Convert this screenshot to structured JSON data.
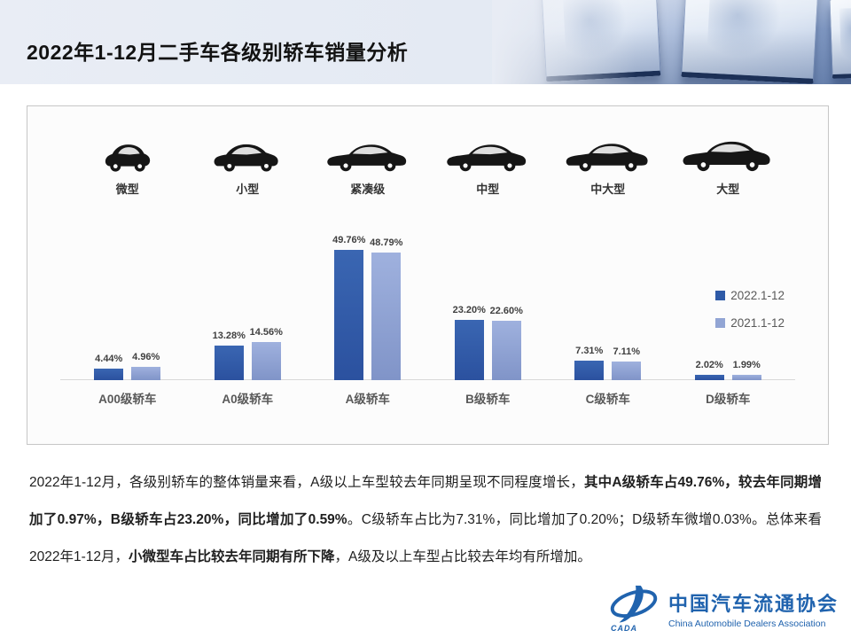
{
  "header": {
    "title": "2022年1-12月二手车各级别轿车销量分析"
  },
  "chart": {
    "car_types": [
      {
        "label": "微型",
        "icon": "micro-car-icon"
      },
      {
        "label": "小型",
        "icon": "small-car-icon"
      },
      {
        "label": "紧凑级",
        "icon": "compact-car-icon"
      },
      {
        "label": "中型",
        "icon": "mid-size-car-icon"
      },
      {
        "label": "中大型",
        "icon": "mid-large-car-icon"
      },
      {
        "label": "大型",
        "icon": "large-car-icon"
      }
    ]
  },
  "chart_data": {
    "type": "bar",
    "title": "",
    "xlabel": "",
    "ylabel": "",
    "categories": [
      "A00级轿车",
      "A0级轿车",
      "A级轿车",
      "B级轿车",
      "C级轿车",
      "D级轿车"
    ],
    "series": [
      {
        "name": "2022.1-12",
        "color": "#2E5AA7",
        "values": [
          4.44,
          13.28,
          49.76,
          23.2,
          7.31,
          2.02
        ]
      },
      {
        "name": "2021.1-12",
        "color": "#92A5D4",
        "values": [
          4.96,
          14.56,
          48.79,
          22.6,
          7.11,
          1.99
        ]
      }
    ],
    "value_suffix": "%",
    "value_decimals": 2,
    "ylim": [
      0,
      55
    ],
    "grid": false,
    "legend_position": "right"
  },
  "summary": {
    "segments": [
      {
        "text": "2022年1-12月，各级别轿车的整体销量来看，A级以上车型较去年同期呈现不同程度增长，",
        "bold": false
      },
      {
        "text": "其中A级轿车占49.76%，较去年同期增加了0.97%，B级轿车占23.20%，同比增加了0.59%",
        "bold": true
      },
      {
        "text": "。C级轿车占比为7.31%，同比增加了0.20%；D级轿车微增0.03%。总体来看2022年1-12月，",
        "bold": false
      },
      {
        "text": "小微型车占比较去年同期有所下降",
        "bold": true
      },
      {
        "text": "，A级及以上车型占比较去年均有所增加。",
        "bold": false
      }
    ]
  },
  "footer_logo": {
    "acronym": "CADA",
    "cn": "中国汽车流通协会",
    "en": "China Automobile Dealers Association",
    "color": "#2063AE"
  }
}
